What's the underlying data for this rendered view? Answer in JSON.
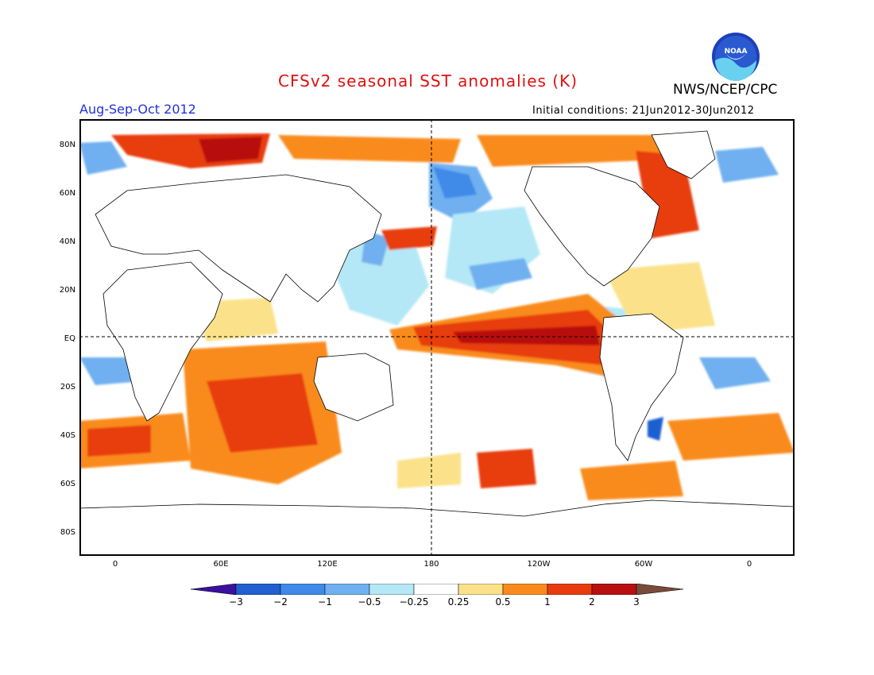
{
  "title": "CFSv2 seasonal SST anomalies (K)",
  "season": "Aug-Sep-Oct 2012",
  "organization": "NWS/NCEP/CPC",
  "logo_text": "NOAA",
  "initial_conditions": "Initial conditions: 21Jun2012-30Jun2012",
  "lat_labels": [
    "80N",
    "60N",
    "40N",
    "20N",
    "EQ",
    "20S",
    "40S",
    "60S",
    "80S"
  ],
  "lon_labels": [
    "0",
    "60E",
    "120E",
    "180",
    "120W",
    "60W",
    "0"
  ],
  "colorbar": {
    "labels": [
      "-3",
      "-2",
      "-1",
      "-0.5",
      "-0.25",
      "0.25",
      "0.5",
      "1",
      "2",
      "3"
    ],
    "colors": [
      "#3a10a0",
      "#1f5fd0",
      "#3f8ae8",
      "#6fb0f0",
      "#b4e8f6",
      "#ffffff",
      "#fbe28a",
      "#f98b1e",
      "#e83c10",
      "#b81010",
      "#7a4a3a"
    ]
  },
  "map_colors": {
    "land": "#ffffff",
    "coast": "#000000",
    "pos_light": "#fbe28a",
    "pos_mid": "#f98b1e",
    "pos_strong": "#e83c10",
    "pos_max": "#b81010",
    "neg_light": "#b4e8f6",
    "neg_mid": "#6fb0f0",
    "neg_strong": "#3f8ae8",
    "neg_max": "#1f5fd0"
  }
}
